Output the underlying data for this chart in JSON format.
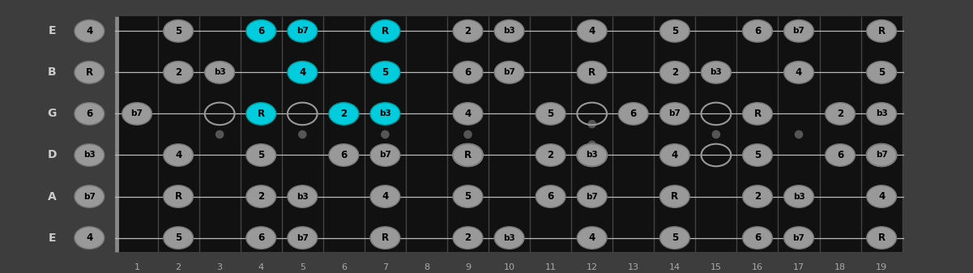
{
  "strings": [
    "E",
    "B",
    "G",
    "D",
    "A",
    "E"
  ],
  "num_frets": 19,
  "fret_numbers": [
    1,
    2,
    3,
    4,
    5,
    6,
    7,
    8,
    9,
    10,
    11,
    12,
    13,
    14,
    15,
    16,
    17,
    18,
    19
  ],
  "bg_color": "#3d3d3d",
  "fretboard_color": "#111111",
  "nut_color": "#888888",
  "fret_color": "#444444",
  "string_color": "#bbbbbb",
  "note_color_normal": "#999999",
  "note_color_highlight": "#00ccdd",
  "note_ec_normal": "#777777",
  "note_ec_highlight": "#009999",
  "note_text_color": "#000000",
  "string_label_color": "#cccccc",
  "fret_label_color": "#aaaaaa",
  "open_circle_ec": "#999999",
  "inlay_color": "#555555",
  "inlay_frets": [
    3,
    5,
    7,
    9,
    12,
    15,
    17
  ],
  "notes": [
    {
      "string": 0,
      "fret": 0,
      "label": "4",
      "highlight": false
    },
    {
      "string": 0,
      "fret": 2,
      "label": "5",
      "highlight": false
    },
    {
      "string": 0,
      "fret": 4,
      "label": "6",
      "highlight": true
    },
    {
      "string": 0,
      "fret": 5,
      "label": "b7",
      "highlight": true
    },
    {
      "string": 0,
      "fret": 7,
      "label": "R",
      "highlight": true
    },
    {
      "string": 0,
      "fret": 9,
      "label": "2",
      "highlight": false
    },
    {
      "string": 0,
      "fret": 10,
      "label": "b3",
      "highlight": false
    },
    {
      "string": 0,
      "fret": 12,
      "label": "4",
      "highlight": false
    },
    {
      "string": 0,
      "fret": 14,
      "label": "5",
      "highlight": false
    },
    {
      "string": 0,
      "fret": 16,
      "label": "6",
      "highlight": false
    },
    {
      "string": 0,
      "fret": 17,
      "label": "b7",
      "highlight": false
    },
    {
      "string": 0,
      "fret": 19,
      "label": "R",
      "highlight": false
    },
    {
      "string": 1,
      "fret": 0,
      "label": "R",
      "highlight": false
    },
    {
      "string": 1,
      "fret": 2,
      "label": "2",
      "highlight": false
    },
    {
      "string": 1,
      "fret": 3,
      "label": "b3",
      "highlight": false
    },
    {
      "string": 1,
      "fret": 5,
      "label": "4",
      "highlight": true
    },
    {
      "string": 1,
      "fret": 7,
      "label": "5",
      "highlight": true
    },
    {
      "string": 1,
      "fret": 9,
      "label": "6",
      "highlight": false
    },
    {
      "string": 1,
      "fret": 10,
      "label": "b7",
      "highlight": false
    },
    {
      "string": 1,
      "fret": 12,
      "label": "R",
      "highlight": false
    },
    {
      "string": 1,
      "fret": 14,
      "label": "2",
      "highlight": false
    },
    {
      "string": 1,
      "fret": 15,
      "label": "b3",
      "highlight": false
    },
    {
      "string": 1,
      "fret": 17,
      "label": "4",
      "highlight": false
    },
    {
      "string": 1,
      "fret": 19,
      "label": "5",
      "highlight": false
    },
    {
      "string": 2,
      "fret": 0,
      "label": "6",
      "highlight": false
    },
    {
      "string": 2,
      "fret": 1,
      "label": "b7",
      "highlight": false
    },
    {
      "string": 2,
      "fret": 4,
      "label": "R",
      "highlight": true
    },
    {
      "string": 2,
      "fret": 6,
      "label": "2",
      "highlight": true
    },
    {
      "string": 2,
      "fret": 7,
      "label": "b3",
      "highlight": true
    },
    {
      "string": 2,
      "fret": 9,
      "label": "4",
      "highlight": false
    },
    {
      "string": 2,
      "fret": 11,
      "label": "5",
      "highlight": false
    },
    {
      "string": 2,
      "fret": 13,
      "label": "6",
      "highlight": false
    },
    {
      "string": 2,
      "fret": 14,
      "label": "b7",
      "highlight": false
    },
    {
      "string": 2,
      "fret": 16,
      "label": "R",
      "highlight": false
    },
    {
      "string": 2,
      "fret": 18,
      "label": "2",
      "highlight": false
    },
    {
      "string": 2,
      "fret": 19,
      "label": "b3",
      "highlight": false
    },
    {
      "string": 3,
      "fret": 0,
      "label": "b3",
      "highlight": false
    },
    {
      "string": 3,
      "fret": 2,
      "label": "4",
      "highlight": false
    },
    {
      "string": 3,
      "fret": 4,
      "label": "5",
      "highlight": false
    },
    {
      "string": 3,
      "fret": 6,
      "label": "6",
      "highlight": false
    },
    {
      "string": 3,
      "fret": 7,
      "label": "b7",
      "highlight": false
    },
    {
      "string": 3,
      "fret": 9,
      "label": "R",
      "highlight": false
    },
    {
      "string": 3,
      "fret": 11,
      "label": "2",
      "highlight": false
    },
    {
      "string": 3,
      "fret": 12,
      "label": "b3",
      "highlight": false
    },
    {
      "string": 3,
      "fret": 14,
      "label": "4",
      "highlight": false
    },
    {
      "string": 3,
      "fret": 16,
      "label": "5",
      "highlight": false
    },
    {
      "string": 3,
      "fret": 18,
      "label": "6",
      "highlight": false
    },
    {
      "string": 3,
      "fret": 19,
      "label": "b7",
      "highlight": false
    },
    {
      "string": 4,
      "fret": 0,
      "label": "b7",
      "highlight": false
    },
    {
      "string": 4,
      "fret": 2,
      "label": "R",
      "highlight": false
    },
    {
      "string": 4,
      "fret": 4,
      "label": "2",
      "highlight": false
    },
    {
      "string": 4,
      "fret": 5,
      "label": "b3",
      "highlight": false
    },
    {
      "string": 4,
      "fret": 7,
      "label": "4",
      "highlight": false
    },
    {
      "string": 4,
      "fret": 9,
      "label": "5",
      "highlight": false
    },
    {
      "string": 4,
      "fret": 11,
      "label": "6",
      "highlight": false
    },
    {
      "string": 4,
      "fret": 12,
      "label": "b7",
      "highlight": false
    },
    {
      "string": 4,
      "fret": 14,
      "label": "R",
      "highlight": false
    },
    {
      "string": 4,
      "fret": 16,
      "label": "2",
      "highlight": false
    },
    {
      "string": 4,
      "fret": 17,
      "label": "b3",
      "highlight": false
    },
    {
      "string": 4,
      "fret": 19,
      "label": "4",
      "highlight": false
    },
    {
      "string": 5,
      "fret": 0,
      "label": "4",
      "highlight": false
    },
    {
      "string": 5,
      "fret": 2,
      "label": "5",
      "highlight": false
    },
    {
      "string": 5,
      "fret": 4,
      "label": "6",
      "highlight": false
    },
    {
      "string": 5,
      "fret": 5,
      "label": "b7",
      "highlight": false
    },
    {
      "string": 5,
      "fret": 7,
      "label": "R",
      "highlight": false
    },
    {
      "string": 5,
      "fret": 9,
      "label": "2",
      "highlight": false
    },
    {
      "string": 5,
      "fret": 10,
      "label": "b3",
      "highlight": false
    },
    {
      "string": 5,
      "fret": 12,
      "label": "4",
      "highlight": false
    },
    {
      "string": 5,
      "fret": 14,
      "label": "5",
      "highlight": false
    },
    {
      "string": 5,
      "fret": 16,
      "label": "6",
      "highlight": false
    },
    {
      "string": 5,
      "fret": 17,
      "label": "b7",
      "highlight": false
    },
    {
      "string": 5,
      "fret": 19,
      "label": "R",
      "highlight": false
    }
  ],
  "open_circles": [
    {
      "string": 2,
      "fret": 3
    },
    {
      "string": 2,
      "fret": 5
    },
    {
      "string": 2,
      "fret": 12
    },
    {
      "string": 2,
      "fret": 15
    },
    {
      "string": 3,
      "fret": 9
    },
    {
      "string": 3,
      "fret": 12
    },
    {
      "string": 3,
      "fret": 15
    },
    {
      "string": 3,
      "fret": 19
    }
  ]
}
